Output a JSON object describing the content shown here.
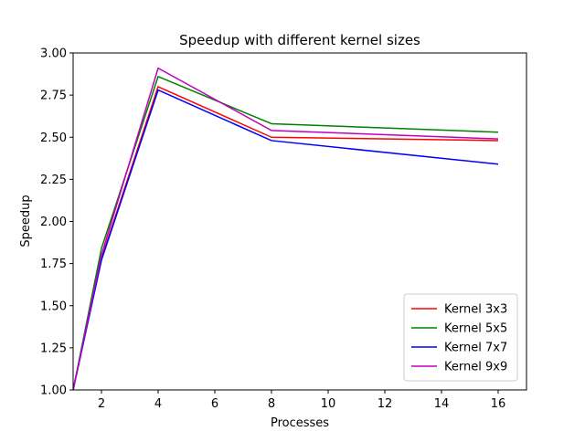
{
  "chart_data": {
    "type": "line",
    "title": "Speedup with different kernel sizes",
    "xlabel": "Processes",
    "ylabel": "Speedup",
    "x": [
      1,
      2,
      4,
      8,
      16
    ],
    "xlim": [
      1,
      17
    ],
    "ylim": [
      1.0,
      3.0
    ],
    "xticks": [
      2,
      4,
      6,
      8,
      10,
      12,
      14,
      16
    ],
    "yticks": [
      1.0,
      1.25,
      1.5,
      1.75,
      2.0,
      2.25,
      2.5,
      2.75,
      3.0
    ],
    "xtick_labels": [
      "2",
      "4",
      "6",
      "8",
      "10",
      "12",
      "14",
      "16"
    ],
    "ytick_labels": [
      "1.00",
      "1.25",
      "1.50",
      "1.75",
      "2.00",
      "2.25",
      "2.50",
      "2.75",
      "3.00"
    ],
    "grid": false,
    "legend_position": "bottom-right",
    "series": [
      {
        "name": "Kernel 3x3",
        "color": "#ff0000",
        "values": [
          1.0,
          1.78,
          2.8,
          2.5,
          2.48
        ]
      },
      {
        "name": "Kernel 5x5",
        "color": "#008000",
        "values": [
          1.0,
          1.84,
          2.86,
          2.58,
          2.53
        ]
      },
      {
        "name": "Kernel 7x7",
        "color": "#0000ff",
        "values": [
          1.0,
          1.77,
          2.78,
          2.48,
          2.34
        ]
      },
      {
        "name": "Kernel 9x9",
        "color": "#bf00bf",
        "values": [
          1.0,
          1.8,
          2.91,
          2.54,
          2.49
        ]
      }
    ]
  }
}
